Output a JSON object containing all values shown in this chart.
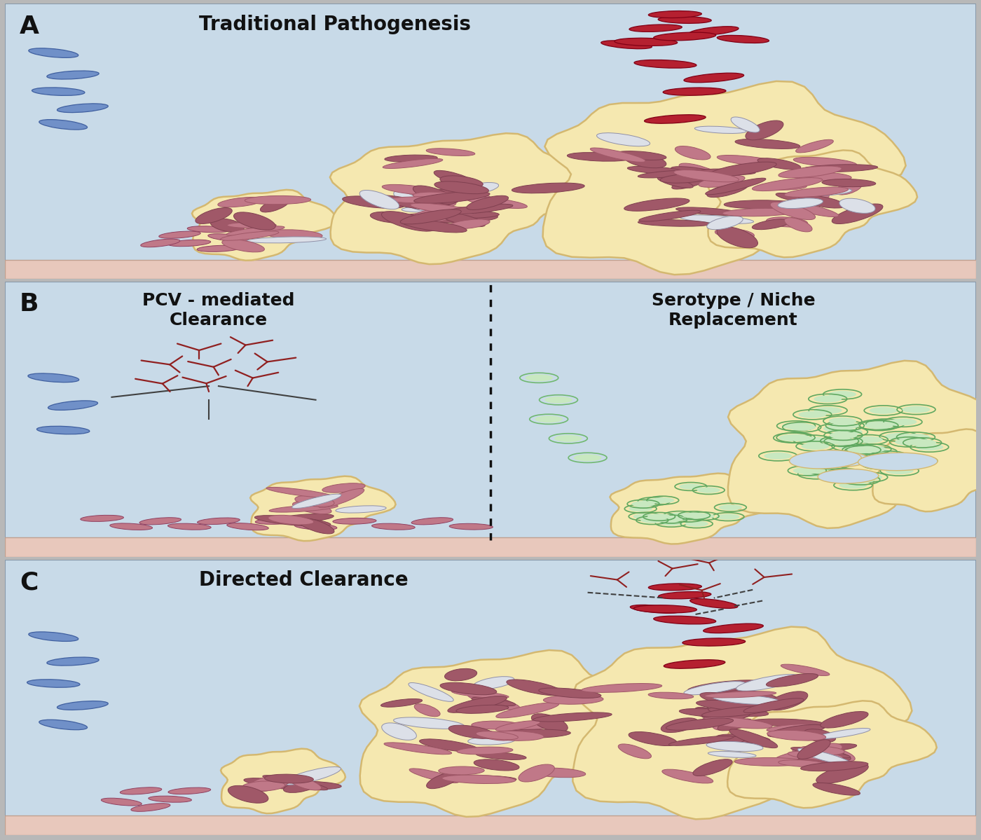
{
  "bg_color_top": "#c8dae8",
  "bg_color_bottom": "#d8e8f0",
  "floor_color": "#e8c8bc",
  "biofilm_color": "#f5e8b0",
  "biofilm_edge": "#d4b870",
  "bact_pink": "#c07888",
  "bact_dark_pink": "#a05868",
  "bact_red": "#b52030",
  "bact_blue": "#7090c8",
  "bact_green_fill": "#c8e8c0",
  "bact_green_edge": "#60a860",
  "bact_white": "#dce0e8",
  "antibody_color": "#902020",
  "label_color": "#111111",
  "separator_color": "#111111",
  "panel_A_title": "Traditional Pathogenesis",
  "panel_B_left_title": "PCV - mediated\nClearance",
  "panel_B_right_title": "Serotype / Niche\nReplacement",
  "panel_C_title": "Directed Clearance"
}
